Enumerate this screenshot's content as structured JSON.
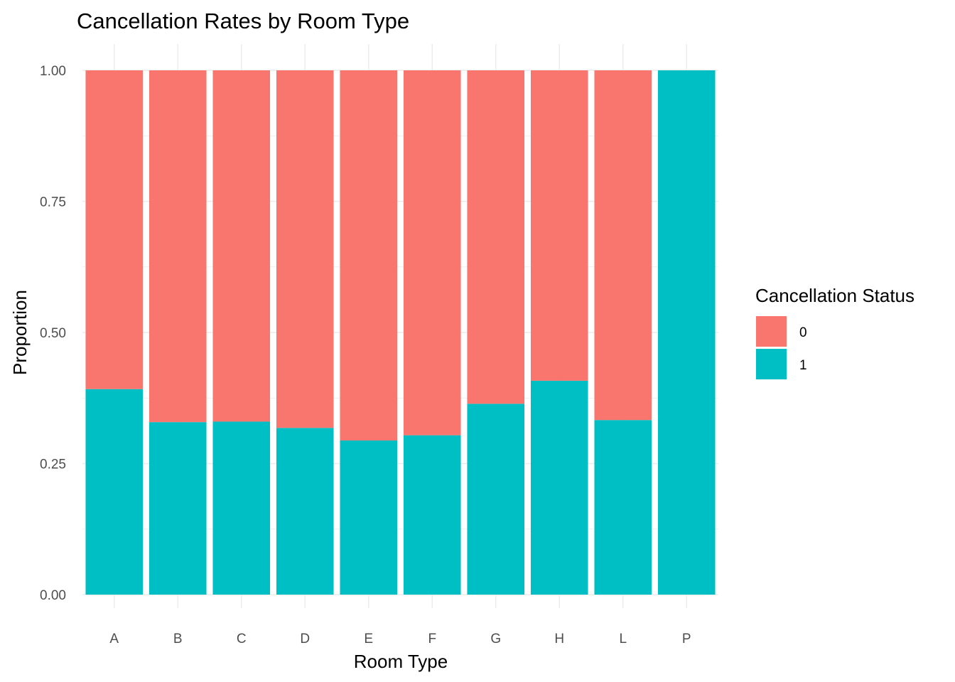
{
  "chart_data": {
    "type": "bar",
    "stacked": true,
    "title": "Cancellation Rates by Room Type",
    "xlabel": "Room Type",
    "ylabel": "Proportion",
    "categories": [
      "A",
      "B",
      "C",
      "D",
      "E",
      "F",
      "G",
      "H",
      "L",
      "P"
    ],
    "series": [
      {
        "name": "1",
        "color": "#00BFC4",
        "values": [
          0.392,
          0.329,
          0.33,
          0.318,
          0.294,
          0.304,
          0.364,
          0.408,
          0.333,
          1.0
        ]
      },
      {
        "name": "0",
        "color": "#F8766D",
        "values": [
          0.608,
          0.671,
          0.67,
          0.682,
          0.706,
          0.696,
          0.636,
          0.592,
          0.667,
          0.0
        ]
      }
    ],
    "ylim": [
      0,
      1
    ],
    "yticks": [
      "0.00",
      "0.25",
      "0.50",
      "0.75",
      "1.00"
    ],
    "grid": true,
    "legend": {
      "title": "Cancellation Status",
      "position": "right",
      "entries": [
        {
          "label": "0",
          "color": "#F8766D"
        },
        {
          "label": "1",
          "color": "#00BFC4"
        }
      ]
    }
  }
}
